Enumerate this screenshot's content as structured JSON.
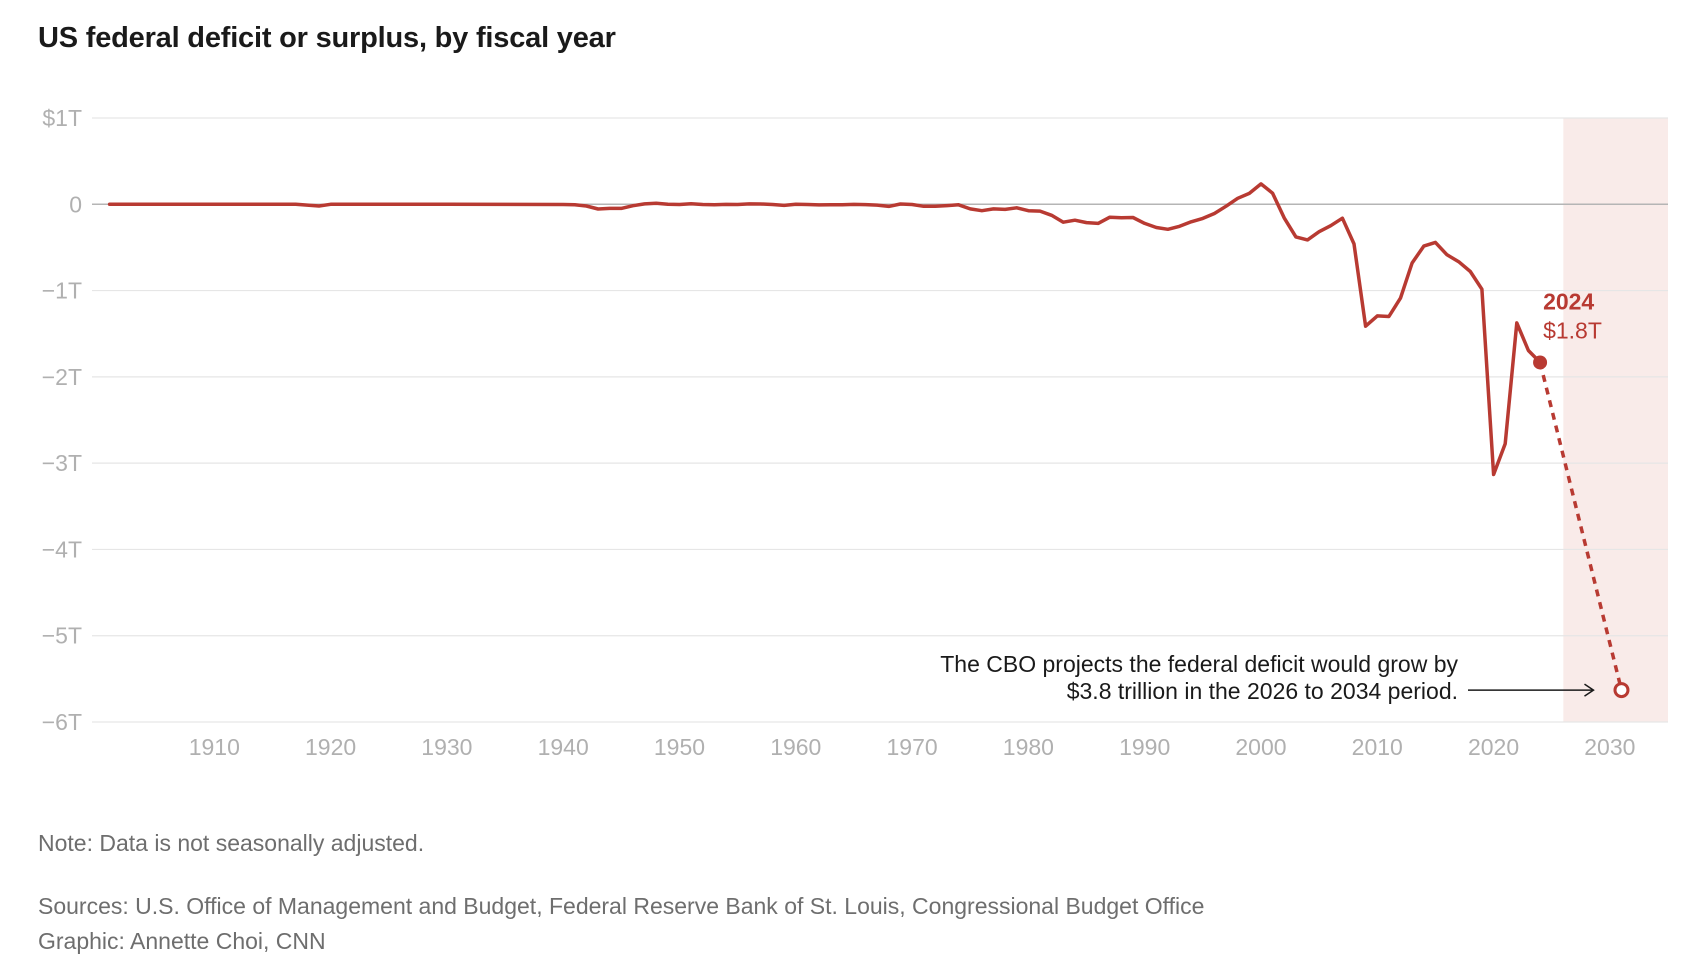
{
  "title": "US federal deficit or surplus, by fiscal year",
  "note": "Note: Data is not seasonally adjusted.",
  "sources": "Sources: U.S. Office of Management and Budget, Federal Reserve Bank of St. Louis, Congressional Budget Office",
  "credit": "Graphic: Annette Choi, CNN",
  "colors": {
    "line": "#b83a32",
    "projection_band": "#f9ebe9",
    "grid": "#e6e6e6",
    "zero_line": "#b5b5b5",
    "axis_text": "#b0b0b0"
  },
  "chart_data": {
    "type": "line",
    "title": "US federal deficit or surplus, by fiscal year",
    "xlabel": "",
    "ylabel": "",
    "xlim": [
      1900,
      2035
    ],
    "ylim": [
      -6,
      1
    ],
    "x_ticks": [
      1910,
      1920,
      1930,
      1940,
      1950,
      1960,
      1970,
      1980,
      1990,
      2000,
      2010,
      2020,
      2030
    ],
    "x_tick_labels": [
      "1910",
      "1920",
      "1930",
      "1940",
      "1950",
      "1960",
      "1970",
      "1980",
      "1990",
      "2000",
      "2010",
      "2020",
      "2030"
    ],
    "y_ticks": [
      1,
      0,
      -1,
      -2,
      -3,
      -4,
      -5,
      -6
    ],
    "y_tick_labels": [
      "$1T",
      "0",
      "−1T",
      "−2T",
      "−3T",
      "−4T",
      "−5T",
      "−6T"
    ],
    "grid": true,
    "projection_region": [
      2026,
      2035
    ],
    "series": [
      {
        "units": "trillions of dollars",
        "x": [
          1901,
          1910,
          1917,
          1918,
          1919,
          1920,
          1930,
          1940,
          1941,
          1942,
          1943,
          1944,
          1945,
          1946,
          1947,
          1948,
          1949,
          1950,
          1951,
          1952,
          1953,
          1954,
          1955,
          1956,
          1957,
          1958,
          1959,
          1960,
          1961,
          1962,
          1963,
          1964,
          1965,
          1966,
          1967,
          1968,
          1969,
          1970,
          1971,
          1972,
          1973,
          1974,
          1975,
          1976,
          1977,
          1978,
          1979,
          1980,
          1981,
          1982,
          1983,
          1984,
          1985,
          1986,
          1987,
          1988,
          1989,
          1990,
          1991,
          1992,
          1993,
          1994,
          1995,
          1996,
          1997,
          1998,
          1999,
          2000,
          2001,
          2002,
          2003,
          2004,
          2005,
          2006,
          2007,
          2008,
          2009,
          2010,
          2011,
          2012,
          2013,
          2014,
          2015,
          2016,
          2017,
          2018,
          2019,
          2020,
          2021,
          2022,
          2023,
          2024
        ],
        "y": [
          0,
          0,
          0,
          -0.01,
          -0.02,
          0,
          0,
          -0.003,
          -0.005,
          -0.02,
          -0.055,
          -0.048,
          -0.048,
          -0.016,
          0.004,
          0.012,
          0.001,
          -0.003,
          0.006,
          -0.002,
          -0.006,
          -0.001,
          -0.003,
          0.004,
          0.003,
          -0.003,
          -0.013,
          0.0003,
          -0.003,
          -0.007,
          -0.005,
          -0.006,
          -0.001,
          -0.004,
          -0.009,
          -0.025,
          0.003,
          -0.003,
          -0.023,
          -0.023,
          -0.015,
          -0.006,
          -0.053,
          -0.074,
          -0.054,
          -0.059,
          -0.041,
          -0.074,
          -0.079,
          -0.128,
          -0.208,
          -0.185,
          -0.212,
          -0.221,
          -0.15,
          -0.155,
          -0.153,
          -0.221,
          -0.269,
          -0.29,
          -0.255,
          -0.203,
          -0.164,
          -0.107,
          -0.022,
          0.069,
          0.126,
          0.236,
          0.128,
          -0.158,
          -0.378,
          -0.413,
          -0.318,
          -0.248,
          -0.161,
          -0.459,
          -1.413,
          -1.294,
          -1.3,
          -1.087,
          -0.68,
          -0.485,
          -0.442,
          -0.585,
          -0.665,
          -0.779,
          -0.984,
          -3.132,
          -2.775,
          -1.375,
          -1.695,
          -1.833
        ]
      }
    ],
    "projection": {
      "x": [
        2024,
        2031
      ],
      "y": [
        -1.833,
        -5.63
      ]
    },
    "callout": {
      "year": "2024",
      "value": "$1.8T"
    },
    "annotation": {
      "line1": "The CBO projects the federal deficit would grow by",
      "line2": "$3.8 trillion in the 2026 to 2034 period."
    }
  }
}
